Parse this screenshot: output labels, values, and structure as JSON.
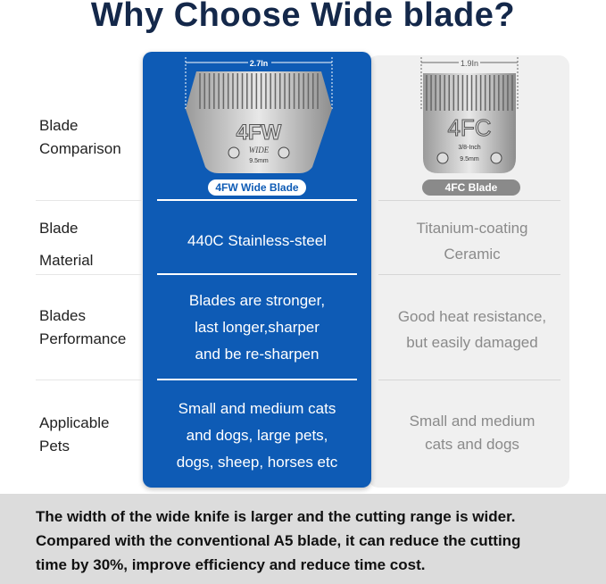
{
  "title": "Why Choose Wide blade?",
  "rows": [
    {
      "label_lines": [
        "Blade",
        "Comparison"
      ]
    },
    {
      "label_lines": [
        "Blade",
        "Material"
      ],
      "wide": [
        "440C Stainless-steel"
      ],
      "standard": [
        "Titanium-coating",
        "Ceramic"
      ]
    },
    {
      "label_lines": [
        "Blades",
        "Performance"
      ],
      "wide": [
        "Blades are stronger,",
        "last longer,sharper",
        "and be re-sharpen"
      ],
      "standard": [
        "Good heat resistance,",
        "but easily damaged"
      ]
    },
    {
      "label_lines": [
        "Applicable",
        "Pets"
      ],
      "wide": [
        "Small and medium cats",
        "and dogs, large pets,",
        "dogs, sheep, horses etc"
      ],
      "standard": [
        "Small and medium",
        "cats and dogs"
      ]
    }
  ],
  "wide_blade": {
    "name": "4FW Wide Blade",
    "width": "2.7In",
    "code": "4FW",
    "sub": "WIDE",
    "size": "9.5mm"
  },
  "standard_blade": {
    "name": "4FC Blade",
    "width": "1.9In",
    "code": "4FC",
    "sub": "3/8-Inch",
    "size": "9.5mm"
  },
  "footer": [
    "The width of the wide knife is larger and the cutting range is wider.",
    "Compared with the conventional A5 blade, it can reduce the cutting",
    "time by 30%, improve efficiency and reduce time cost."
  ],
  "colors": {
    "accent": "#0e5bb5",
    "title": "#14284a"
  }
}
